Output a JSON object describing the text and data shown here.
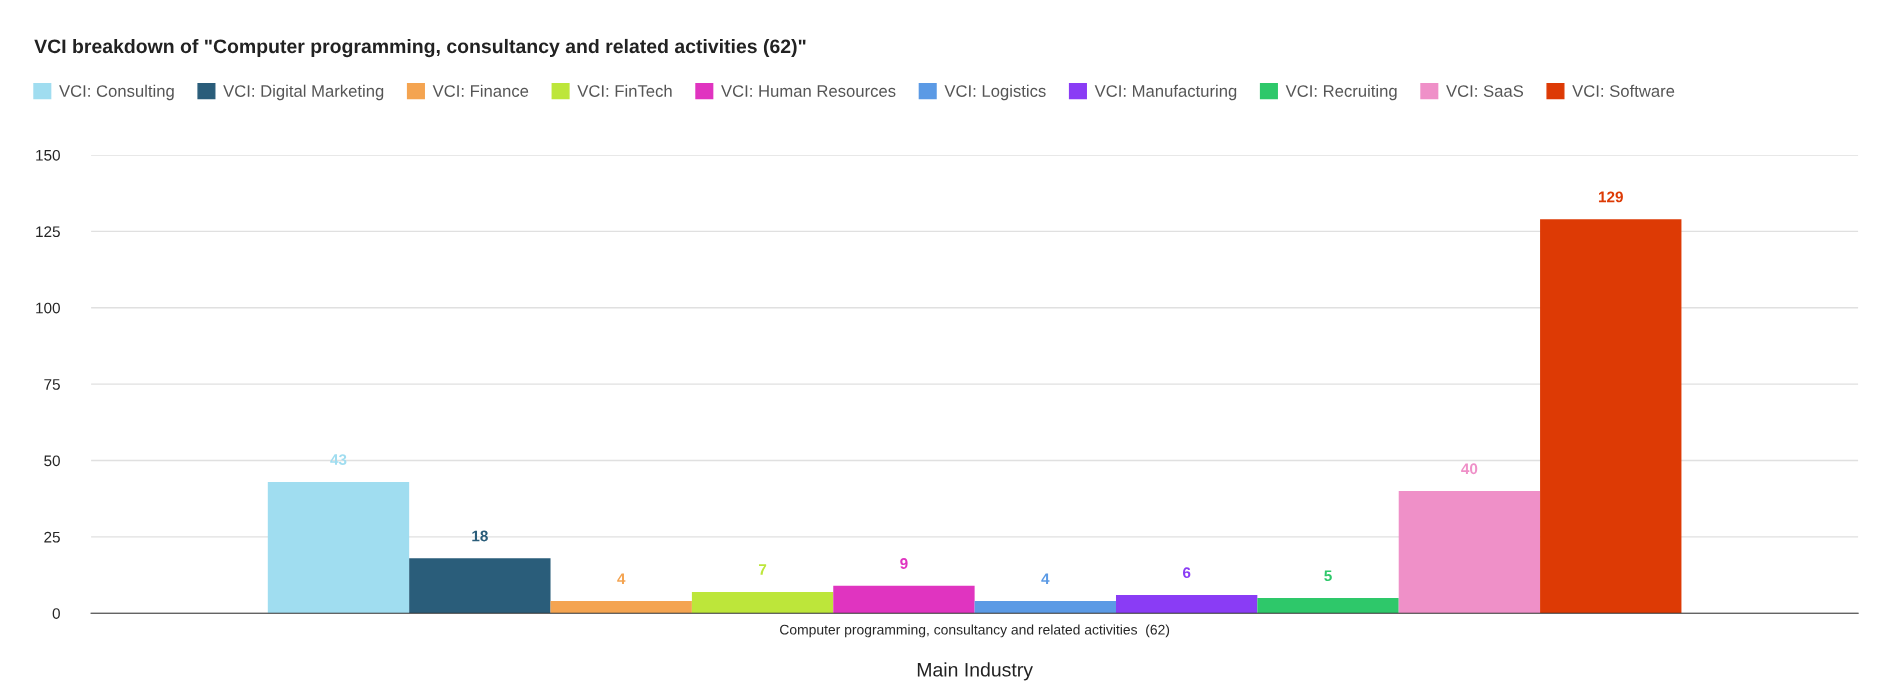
{
  "chart_data": {
    "type": "bar",
    "title": "VCI breakdown of \"Computer programming, consultancy and related activities (62)\"",
    "categories": [
      "Computer programming, consultancy and related activities  (62)"
    ],
    "xlabel": "Main Industry",
    "series": [
      {
        "name": "VCI: Consulting",
        "color": "#a0ddf0",
        "values": [
          43
        ]
      },
      {
        "name": "VCI: Digital Marketing",
        "color": "#2a5d7a",
        "values": [
          18
        ]
      },
      {
        "name": "VCI: Finance",
        "color": "#f4a451",
        "values": [
          4
        ]
      },
      {
        "name": "VCI: FinTech",
        "color": "#bde63a",
        "values": [
          7
        ]
      },
      {
        "name": "VCI: Human Resources",
        "color": "#e034c0",
        "values": [
          9
        ]
      },
      {
        "name": "VCI: Logistics",
        "color": "#5b9ae5",
        "values": [
          4
        ]
      },
      {
        "name": "VCI: Manufacturing",
        "color": "#8a3cf5",
        "values": [
          6
        ]
      },
      {
        "name": "VCI: Recruiting",
        "color": "#2ec86a",
        "values": [
          5
        ]
      },
      {
        "name": "VCI: SaaS",
        "color": "#ef90c8",
        "values": [
          40
        ]
      },
      {
        "name": "VCI: Software",
        "color": "#dd3a05",
        "values": [
          129
        ]
      }
    ],
    "ylim": [
      0,
      150
    ],
    "yticks": [
      0,
      25,
      50,
      75,
      100,
      125,
      150
    ],
    "grid": "y",
    "legend": "top",
    "data_labels": true
  }
}
